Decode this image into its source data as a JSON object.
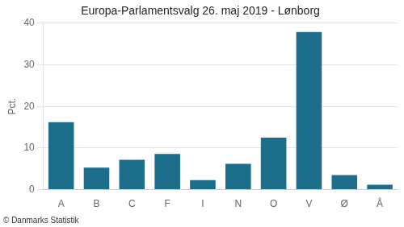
{
  "chart_data": {
    "type": "bar",
    "title": "Europa-Parlamentsvalg 26. maj 2019 - Lønborg",
    "categories": [
      "A",
      "B",
      "C",
      "F",
      "I",
      "N",
      "O",
      "V",
      "Ø",
      "Å"
    ],
    "values": [
      16.2,
      5.3,
      7.2,
      8.6,
      2.3,
      6.2,
      12.5,
      37.9,
      3.5,
      1.2
    ],
    "color": "#1c6e8a",
    "ylabel": "Pct.",
    "ylim": [
      0,
      40
    ],
    "yticks": [
      0,
      10,
      20,
      30,
      40
    ],
    "grid": true,
    "annotations": [
      "© Danmarks Statistik"
    ]
  }
}
